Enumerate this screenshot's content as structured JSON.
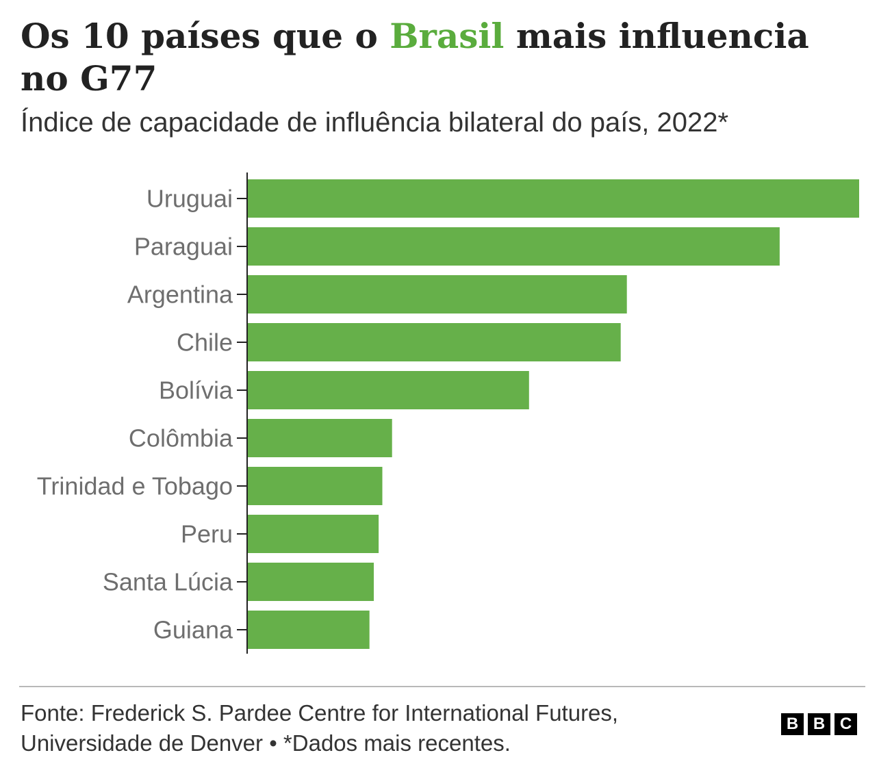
{
  "header": {
    "title_before": "Os 10 países que o ",
    "title_highlight": "Brasil",
    "title_after": " mais influencia no G77",
    "subtitle": "Índice de capacidade de influência bilateral do país, 2022*"
  },
  "chart_data": {
    "type": "bar",
    "orientation": "horizontal",
    "title": "Os 10 países que o Brasil mais influencia no G77",
    "subtitle": "Índice de capacidade de influência bilateral do país, 2022*",
    "categories": [
      "Uruguai",
      "Paraguai",
      "Argentina",
      "Chile",
      "Bolívia",
      "Colômbia",
      "Trinidad e Tobago",
      "Peru",
      "Santa Lúcia",
      "Guiana"
    ],
    "values": [
      100,
      87,
      62,
      61,
      46,
      23.6,
      22,
      21.4,
      20.6,
      19.9
    ],
    "value_scale": "relative index, largest = 100 (no axis values printed)",
    "xlim": [
      0,
      100
    ],
    "grid": false,
    "legend": "none",
    "bar_color": "#66b04a",
    "highlight_color": "#5aac3d"
  },
  "footer": {
    "source_line1": "Fonte: Frederick S. Pardee Centre for International Futures,",
    "source_line2": "Universidade de Denver • *Dados mais recentes.",
    "logo_letters": [
      "B",
      "B",
      "C"
    ]
  }
}
